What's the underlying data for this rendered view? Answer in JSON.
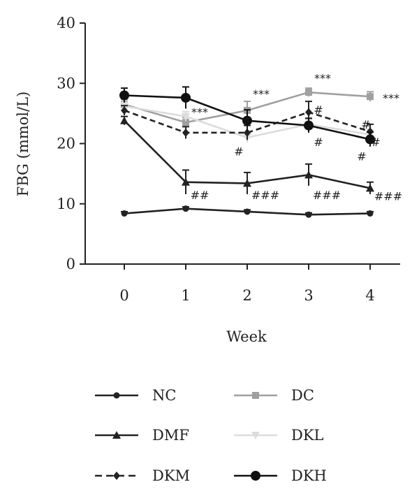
{
  "chart_data": {
    "type": "line",
    "xlabel": "Week",
    "ylabel": "FBG (mmol/L)",
    "x": [
      0,
      1,
      2,
      3,
      4
    ],
    "ylim": [
      0,
      40
    ],
    "yticks": [
      0,
      10,
      20,
      30,
      40
    ],
    "grid": false,
    "legend_position": "bottom",
    "series": [
      {
        "name": "NC",
        "values": [
          8.4,
          9.2,
          8.7,
          8.2,
          8.4
        ],
        "errors": [
          0.3,
          0.3,
          0.3,
          0.3,
          0.3
        ],
        "color": "#222222",
        "marker": "circle-small",
        "dash": "solid"
      },
      {
        "name": "DC",
        "values": [
          26.5,
          23.5,
          25.5,
          28.5,
          27.8
        ],
        "errors": [
          0.8,
          0.8,
          1.5,
          0.7,
          0.8
        ],
        "color": "#a0a0a0",
        "marker": "square",
        "dash": "solid"
      },
      {
        "name": "DMF",
        "values": [
          23.8,
          13.6,
          13.4,
          14.8,
          12.6
        ],
        "errors": [
          0.7,
          2.0,
          1.8,
          1.8,
          1.0
        ],
        "color": "#222222",
        "marker": "triangle",
        "dash": "solid"
      },
      {
        "name": "DKL",
        "values": [
          26.2,
          24.5,
          21.0,
          23.2,
          21.5
        ],
        "errors": [
          0.6,
          0.8,
          0.8,
          0.8,
          0.8
        ],
        "color": "#dcdcdc",
        "marker": "triangle-down",
        "dash": "solid"
      },
      {
        "name": "DKM",
        "values": [
          25.5,
          21.8,
          21.8,
          25.2,
          22.0
        ],
        "errors": [
          0.8,
          1.0,
          1.2,
          1.8,
          1.2
        ],
        "color": "#222222",
        "marker": "diamond",
        "dash": "dashed"
      },
      {
        "name": "DKH",
        "values": [
          28.0,
          27.6,
          23.8,
          23.0,
          20.7
        ],
        "errors": [
          1.2,
          1.8,
          1.8,
          1.2,
          1.2
        ],
        "color": "#111111",
        "marker": "circle",
        "dash": "solid"
      }
    ],
    "annotations": [
      {
        "x": 1,
        "y": 25.3,
        "text": "***"
      },
      {
        "x": 2,
        "y": 28.3,
        "text": "***"
      },
      {
        "x": 3,
        "y": 30.9,
        "text": "***"
      },
      {
        "x": 4,
        "y": 27.6,
        "text": "***"
      },
      {
        "x": 1,
        "y": 11.5,
        "text": "##"
      },
      {
        "x": 2,
        "y": 11.5,
        "text": "###"
      },
      {
        "x": 3,
        "y": 11.5,
        "text": "###"
      },
      {
        "x": 4,
        "y": 11.3,
        "text": "###"
      },
      {
        "x": 2,
        "y": 18.7,
        "text": "#"
      },
      {
        "x": 3,
        "y": 25.6,
        "text": "#"
      },
      {
        "x": 3,
        "y": 20.3,
        "text": "#"
      },
      {
        "x": 4,
        "y": 23.2,
        "text": "#"
      },
      {
        "x": 4,
        "y": 20.3,
        "text": "#"
      },
      {
        "x": 4,
        "y": 17.9,
        "text": "#"
      }
    ]
  }
}
